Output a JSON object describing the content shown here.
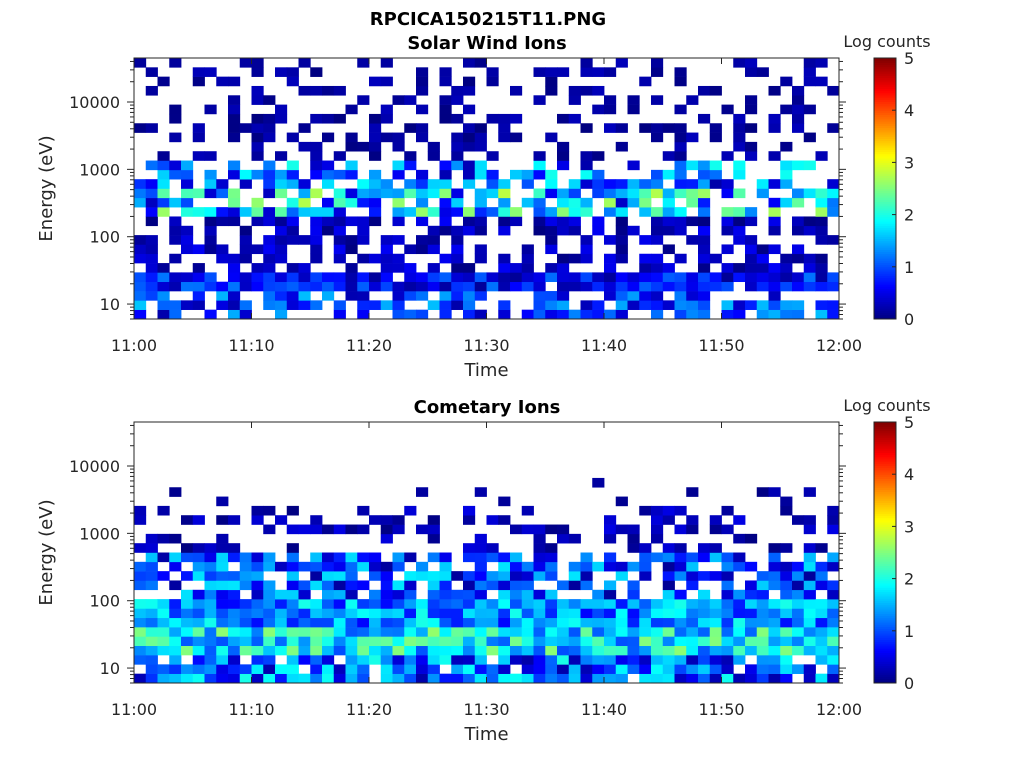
{
  "figure": {
    "main_title": "RPCICA150215T11.PNG"
  },
  "chart_data": [
    {
      "type": "heatmap",
      "title": "Solar Wind Ions",
      "xlabel": "Time",
      "ylabel": "Energy (eV)",
      "x_range": [
        "11:00",
        "12:00"
      ],
      "x_ticks": [
        "11:00",
        "11:10",
        "11:20",
        "11:30",
        "11:40",
        "11:50",
        "12:00"
      ],
      "y_scale": "log",
      "y_range": [
        6,
        45000
      ],
      "y_ticks": [
        "10",
        "100",
        "1000",
        "10000"
      ],
      "colorbar": {
        "label": "Log counts",
        "range": [
          0,
          5
        ],
        "ticks": [
          "0",
          "1",
          "2",
          "3",
          "4",
          "5"
        ],
        "colormap": "jet"
      },
      "time_bins": 60,
      "energy_bins": 28,
      "bands": [
        {
          "e_min": 6,
          "e_max": 14,
          "density": 0.7,
          "log_counts": [
            0.2,
            1.6
          ]
        },
        {
          "e_min": 14,
          "e_max": 30,
          "density": 0.95,
          "log_counts": [
            0.1,
            1.2
          ]
        },
        {
          "e_min": 30,
          "e_max": 180,
          "density": 0.55,
          "log_counts": [
            0.0,
            0.6
          ]
        },
        {
          "e_min": 180,
          "e_max": 600,
          "density": 0.75,
          "log_counts": [
            0.3,
            2.8
          ]
        },
        {
          "e_min": 600,
          "e_max": 1400,
          "density": 0.55,
          "log_counts": [
            0.2,
            2.0
          ]
        },
        {
          "e_min": 1400,
          "e_max": 45000,
          "density": 0.3,
          "log_counts": [
            0.0,
            0.3
          ]
        }
      ]
    },
    {
      "type": "heatmap",
      "title": "Cometary Ions",
      "xlabel": "Time",
      "ylabel": "Energy (eV)",
      "x_range": [
        "11:00",
        "12:00"
      ],
      "x_ticks": [
        "11:00",
        "11:10",
        "11:20",
        "11:30",
        "11:40",
        "11:50",
        "12:00"
      ],
      "y_scale": "log",
      "y_range": [
        6,
        45000
      ],
      "y_ticks": [
        "10",
        "100",
        "1000",
        "10000"
      ],
      "colorbar": {
        "label": "Log counts",
        "range": [
          0,
          5
        ],
        "ticks": [
          "0",
          "1",
          "2",
          "3",
          "4",
          "5"
        ],
        "colormap": "jet"
      },
      "time_bins": 60,
      "energy_bins": 28,
      "bands": [
        {
          "e_min": 6,
          "e_max": 14,
          "density": 0.9,
          "log_counts": [
            0.2,
            2.0
          ]
        },
        {
          "e_min": 14,
          "e_max": 40,
          "density": 1.0,
          "log_counts": [
            1.0,
            2.6
          ]
        },
        {
          "e_min": 40,
          "e_max": 120,
          "density": 1.0,
          "log_counts": [
            0.6,
            2.0
          ]
        },
        {
          "e_min": 120,
          "e_max": 600,
          "density": 0.75,
          "log_counts": [
            0.1,
            1.8
          ]
        },
        {
          "e_min": 600,
          "e_max": 2500,
          "density": 0.3,
          "log_counts": [
            0.0,
            0.5
          ]
        },
        {
          "e_min": 2500,
          "e_max": 6000,
          "density": 0.05,
          "log_counts": [
            0.0,
            0.3
          ]
        }
      ]
    }
  ]
}
